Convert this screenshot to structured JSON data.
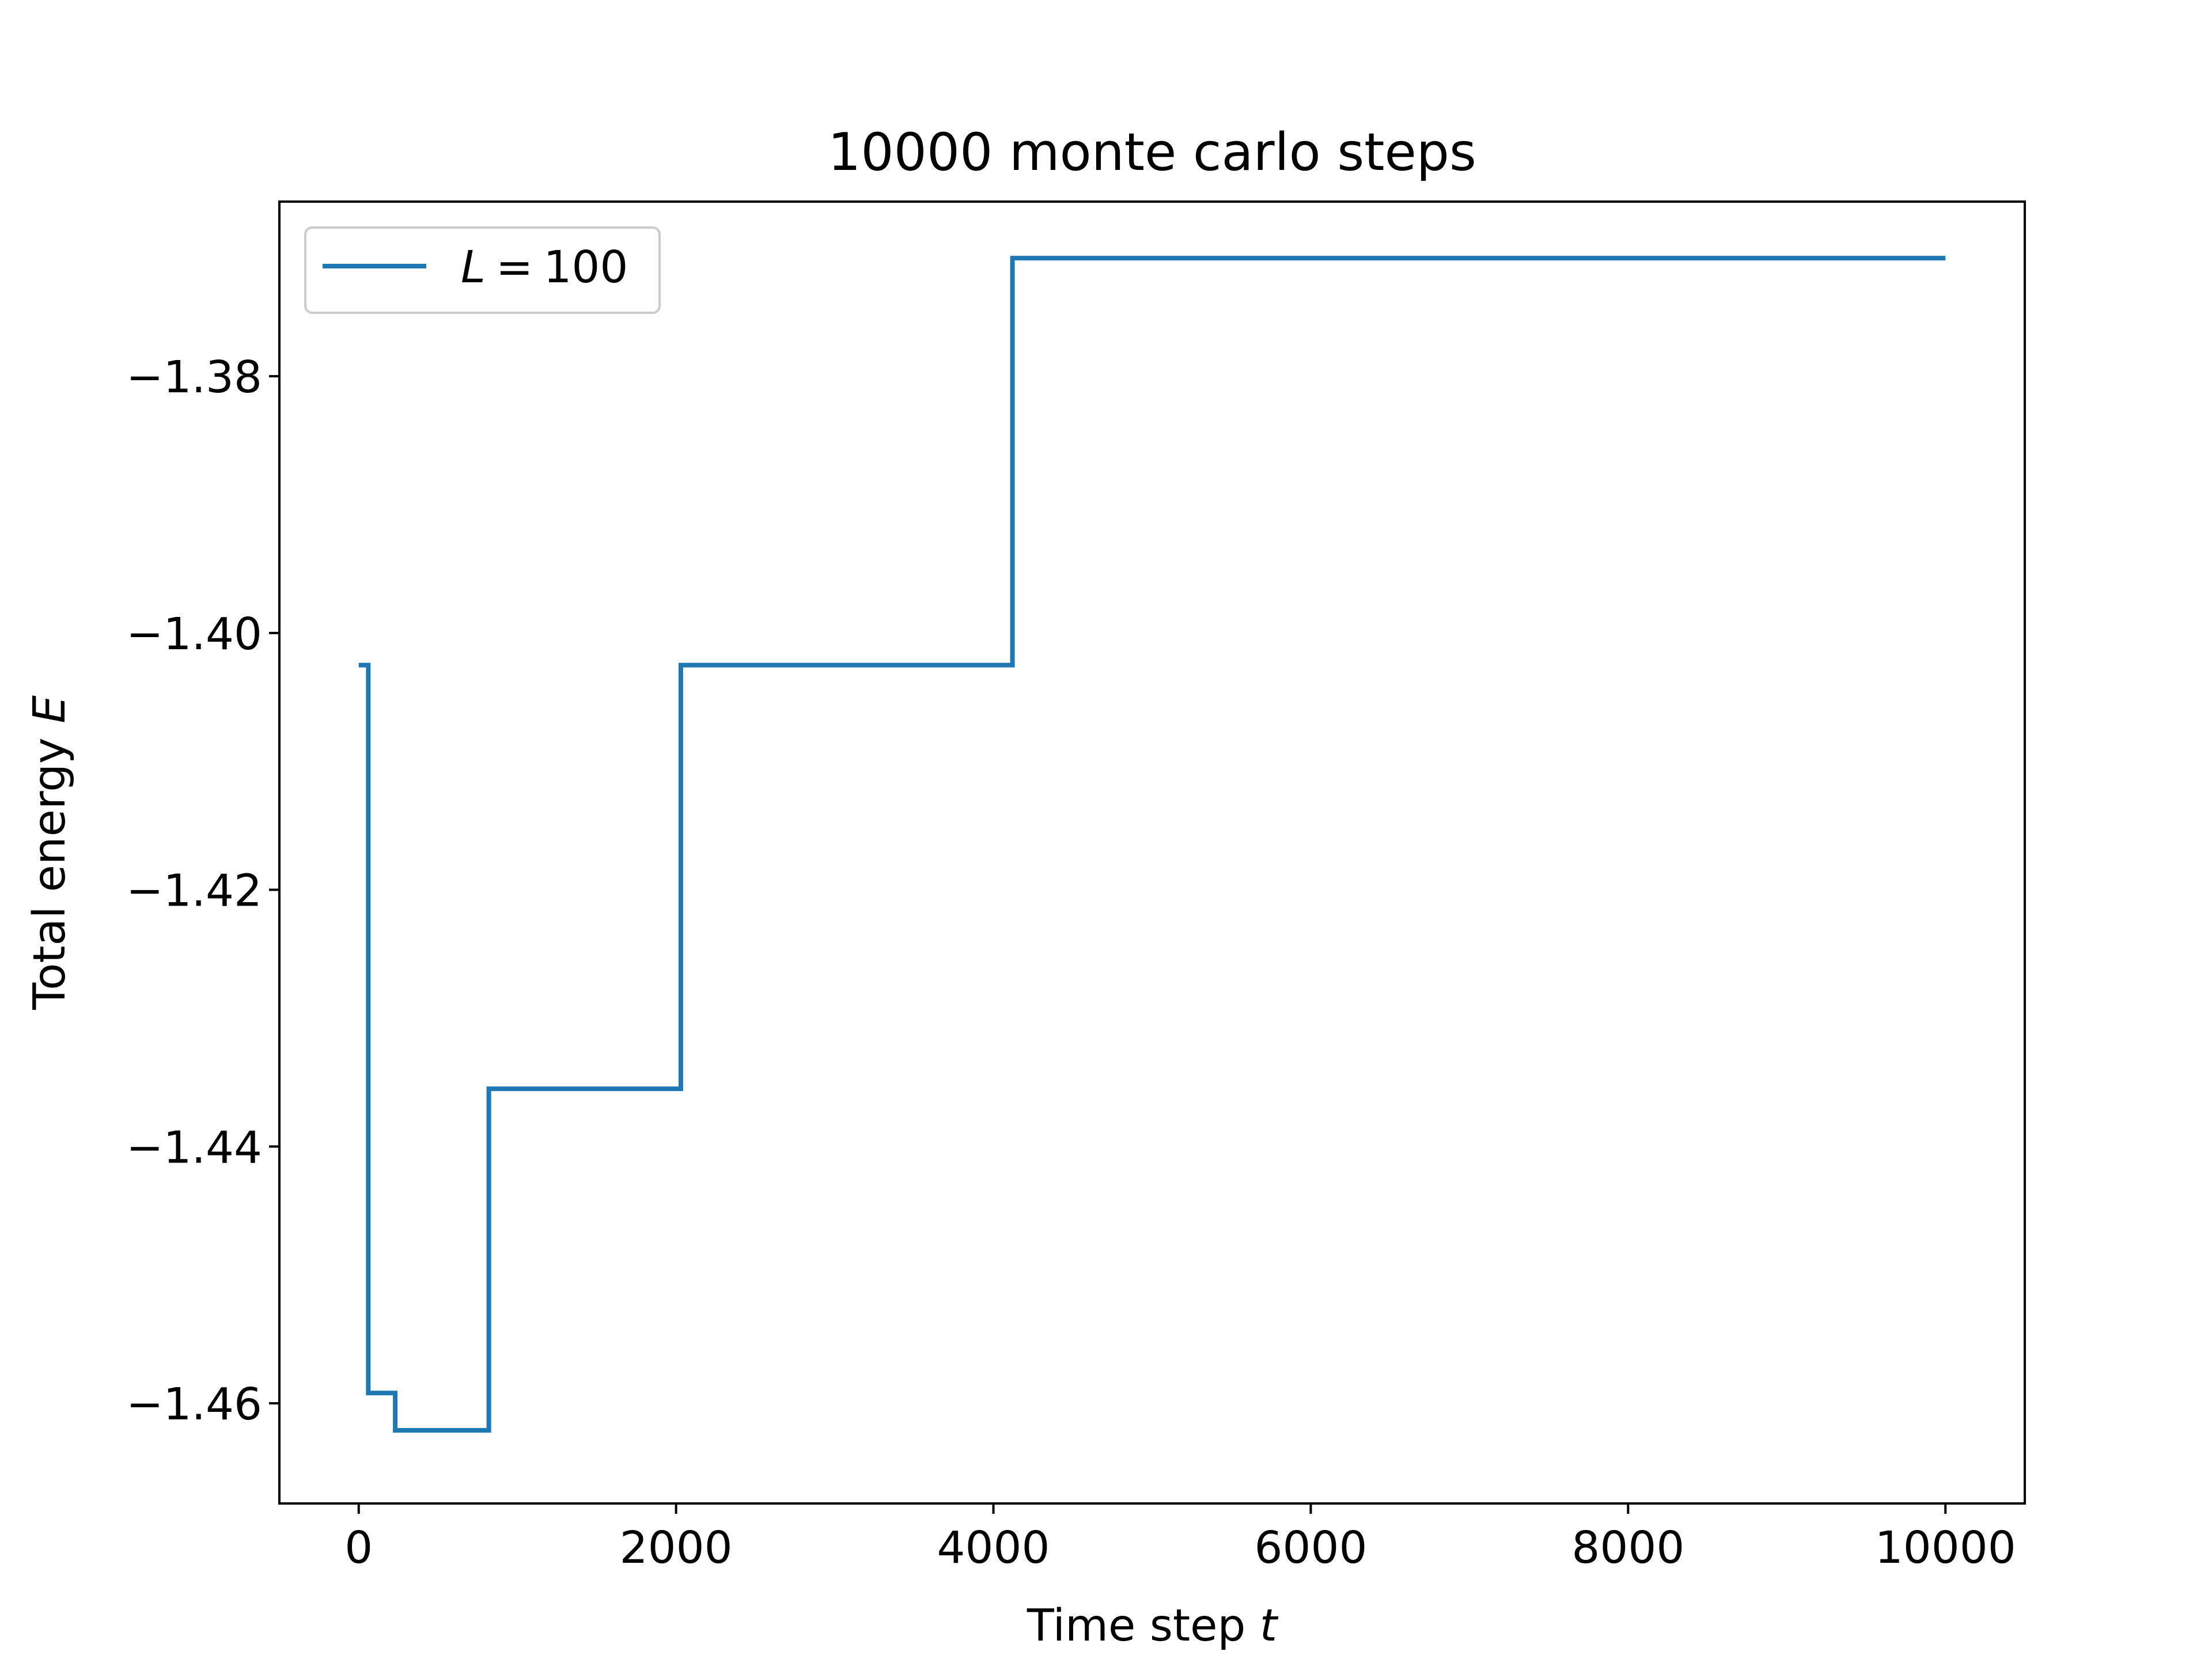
{
  "chart_data": {
    "type": "line",
    "title": "10000 monte carlo steps",
    "xlabel": {
      "text": "Time step ",
      "var": "t"
    },
    "ylabel": {
      "text": "Total energy ",
      "var": "E"
    },
    "xlim": [
      -500,
      10500
    ],
    "ylim": [
      -1.4678,
      -1.3664
    ],
    "xticks": [
      0,
      2000,
      4000,
      6000,
      8000,
      10000
    ],
    "xtick_labels": [
      "0",
      "2000",
      "4000",
      "6000",
      "8000",
      "10000"
    ],
    "yticks": [
      -1.46,
      -1.44,
      -1.42,
      -1.4,
      -1.38
    ],
    "ytick_labels": [
      "−1.46",
      "−1.44",
      "−1.42",
      "−1.40",
      "−1.38"
    ],
    "grid": false,
    "legend_position": "upper-left",
    "series": [
      {
        "name": "L = 100",
        "legend_var": "L",
        "legend_value": "100",
        "color": "#1f77b4",
        "drawstyle": "steps-post",
        "x": [
          0,
          60,
          90,
          230,
          820,
          2030,
          4120,
          10000
        ],
        "y": [
          -1.4025,
          -1.4592,
          -1.4592,
          -1.4621,
          -1.4355,
          -1.4025,
          -1.3708,
          -1.3708
        ]
      }
    ]
  }
}
